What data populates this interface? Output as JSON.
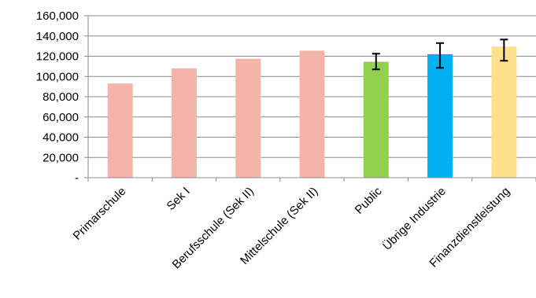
{
  "chart_data": {
    "type": "bar",
    "title": "",
    "xlabel": "",
    "ylabel": "",
    "ylim": [
      0,
      160000
    ],
    "yticks": [
      0,
      20000,
      40000,
      60000,
      80000,
      100000,
      120000,
      140000,
      160000
    ],
    "ytick_labels": [
      "-",
      "20,000",
      "40,000",
      "60,000",
      "80,000",
      "100,000",
      "120,000",
      "140,000",
      "160,000"
    ],
    "grid": true,
    "legend": "none",
    "categories": [
      "Primarschule",
      "Sek I",
      "Berufsschule (Sek II)",
      "Mittelschule (Sek II)",
      "Public",
      "Übrige Industrie",
      "Finanzdienstleistung"
    ],
    "values": [
      93000,
      108000,
      117500,
      125500,
      114500,
      122000,
      129500
    ],
    "error_bars": [
      null,
      null,
      null,
      null,
      {
        "low": 107000,
        "high": 122500
      },
      {
        "low": 108500,
        "high": 133000
      },
      {
        "low": 115500,
        "high": 136500
      }
    ],
    "colors": [
      "#F4B5A9",
      "#F4B5A9",
      "#F4B5A9",
      "#F4B5A9",
      "#92D050",
      "#00B0F0",
      "#FFE08C"
    ]
  }
}
